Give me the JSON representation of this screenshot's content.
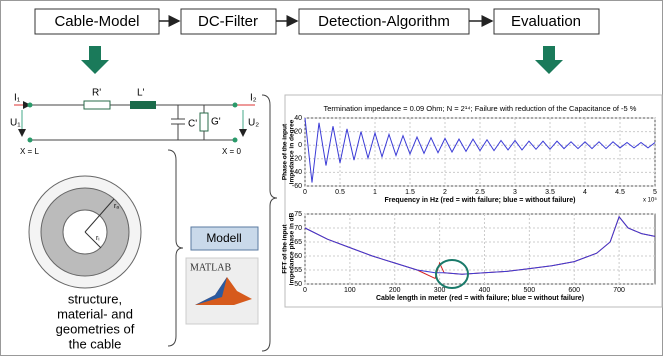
{
  "flow": [
    "Cable-Model",
    "DC-Filter",
    "Detection-Algorithm",
    "Evaluation"
  ],
  "circuit": {
    "i1": "I₁",
    "r": "R'",
    "l": "L'",
    "c": "C'",
    "g": "G'",
    "i2": "I₂",
    "u1": "U₁",
    "u2": "U₂",
    "x_left": "X = L",
    "x_right": "X = 0"
  },
  "cross_section": {
    "outer": "rₐ",
    "inner": "rᵢ"
  },
  "description": [
    "structure,",
    "material- and",
    "geometries of",
    "the cable"
  ],
  "modell": "Modell",
  "matlab": "MATLAB",
  "chart_data": [
    {
      "type": "line",
      "title": "Termination impedance = 0.09 Ohm; N = 2¹⁴; Failure with reduction of the Capacitance of -5 %",
      "ylabel": [
        "Phase of the input",
        "impedance in degree"
      ],
      "xlabel": "Frequency in Hz (red = with failure; blue = without failure)",
      "x_multiplier": "x 10⁵",
      "xlim": [
        0,
        5
      ],
      "xticks": [
        0,
        0.5,
        1,
        1.5,
        2,
        2.5,
        3,
        3.5,
        4,
        4.5,
        5
      ],
      "ylim": [
        -60,
        40
      ],
      "yticks": [
        -60,
        -40,
        -20,
        0,
        20,
        40
      ],
      "grid": true,
      "x": [
        0,
        0.1,
        0.2,
        0.3,
        0.4,
        0.5,
        0.6,
        0.7,
        0.8,
        0.9,
        1,
        1.1,
        1.2,
        1.3,
        1.4,
        1.5,
        1.6,
        1.7,
        1.8,
        1.9,
        2,
        2.1,
        2.2,
        2.3,
        2.4,
        2.5,
        2.6,
        2.7,
        2.8,
        2.9,
        3,
        3.1,
        3.2,
        3.3,
        3.4,
        3.5,
        3.6,
        3.7,
        3.8,
        3.9,
        4,
        4.1,
        4.2,
        4.3,
        4.4,
        4.5,
        4.6,
        4.7,
        4.8,
        4.9,
        5
      ],
      "series": [
        {
          "color": "#3b3bd6",
          "values": [
            40,
            -55,
            33,
            -30,
            28,
            -26,
            24,
            -22,
            20,
            -19,
            18,
            -17,
            16,
            -15,
            14,
            -13,
            12,
            -12,
            11,
            -11,
            10,
            -10,
            9,
            -9,
            9,
            -8,
            8,
            -8,
            7,
            -7,
            7,
            -7,
            6,
            -6,
            6,
            -6,
            6,
            -5,
            5,
            -5,
            5,
            -5,
            5,
            -5,
            5,
            -4,
            4,
            -4,
            4,
            -4,
            4
          ]
        }
      ]
    },
    {
      "type": "line",
      "ylabel": [
        "FFT of the input",
        "impedance phase in dB"
      ],
      "xlabel": "Cable length in meter (red = with failure; blue = without failure)",
      "xlim": [
        0,
        780
      ],
      "xticks": [
        0,
        100,
        200,
        300,
        400,
        500,
        600,
        700
      ],
      "ylim": [
        50,
        75
      ],
      "yticks": [
        50,
        55,
        60,
        65,
        70,
        75
      ],
      "grid": true,
      "x": [
        0,
        50,
        100,
        150,
        200,
        250,
        290,
        300,
        310,
        350,
        400,
        450,
        500,
        550,
        600,
        650,
        680,
        700,
        720,
        750,
        780
      ],
      "series": [
        {
          "color": "#d62020",
          "values": [
            70,
            66,
            63,
            60,
            57.5,
            55,
            52,
            57.5,
            54,
            53.5,
            54,
            54.5,
            55.5,
            56.5,
            58,
            61,
            65,
            74,
            70,
            68,
            67
          ]
        },
        {
          "color": "#3b3bd6",
          "values": [
            70,
            66,
            63,
            60,
            57.5,
            55,
            54,
            54,
            54,
            53.5,
            54,
            54.5,
            55.5,
            56.5,
            58,
            61,
            65,
            74,
            70,
            68,
            67
          ]
        }
      ]
    }
  ]
}
